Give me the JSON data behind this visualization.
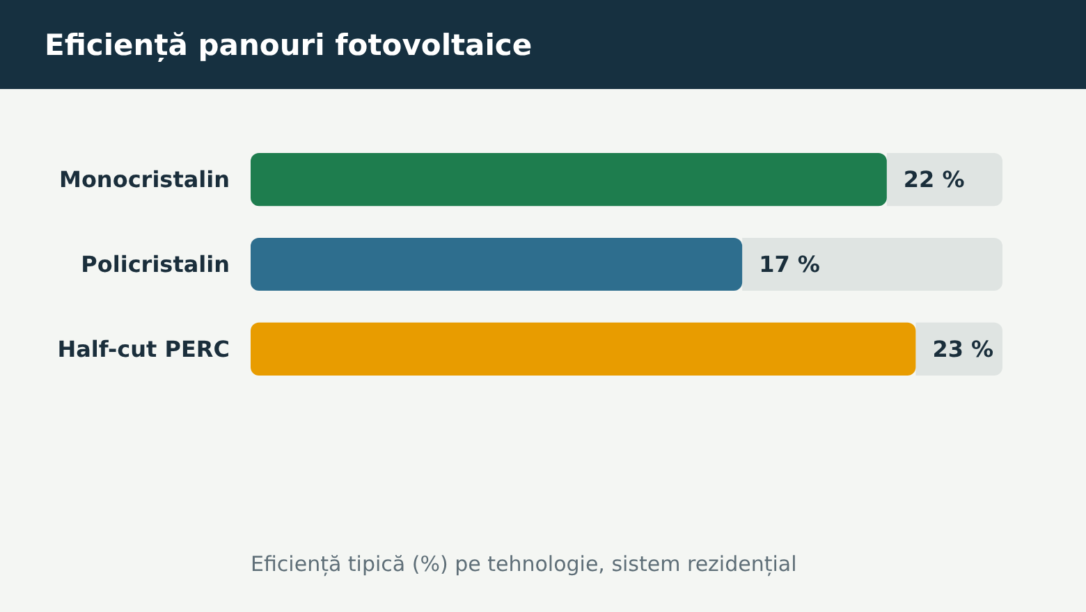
{
  "chart_data": {
    "type": "bar",
    "orientation": "horizontal",
    "title": "Eficiență panouri fotovoltaice",
    "categories": [
      "Monocristalin",
      "Policristalin",
      "Half-cut PERC"
    ],
    "values": [
      22,
      17,
      23
    ],
    "colors": [
      "#1e7d4e",
      "#2e6e8e",
      "#e89c00"
    ],
    "xlim": [
      0,
      26
    ],
    "value_labels": [
      "22 %",
      "17 %",
      "23 %"
    ],
    "annotations": [
      "Eficiență tipică (%) pe tehnologie, sistem rezidențial"
    ]
  }
}
